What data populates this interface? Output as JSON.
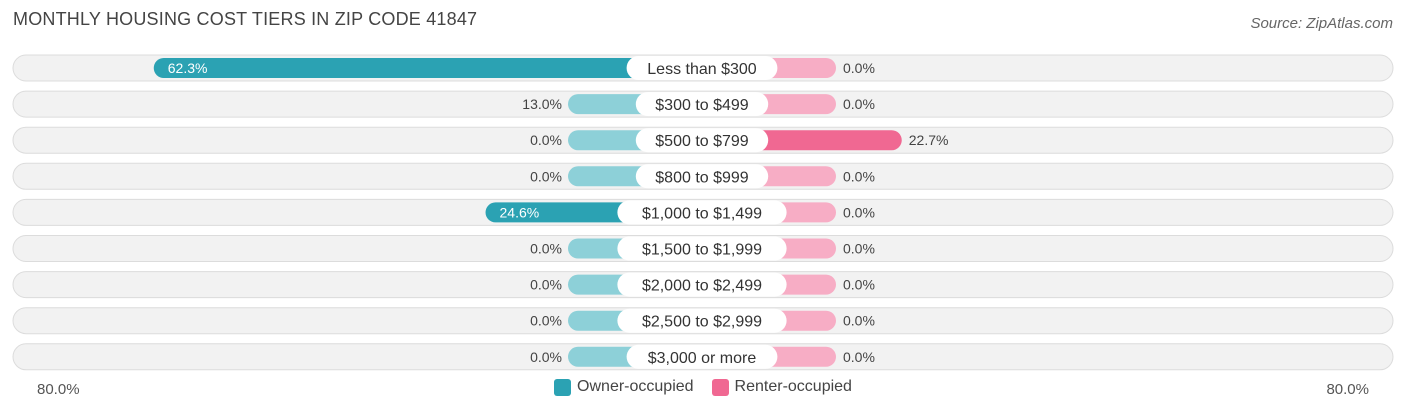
{
  "header": {
    "title": "MONTHLY HOUSING COST TIERS IN ZIP CODE 41847",
    "source": "Source: ZipAtlas.com"
  },
  "chart_data": {
    "type": "bar",
    "orientation": "horizontal-diverging",
    "categories": [
      "Less than $300",
      "$300 to $499",
      "$500 to $799",
      "$800 to $999",
      "$1,000 to $1,499",
      "$1,500 to $1,999",
      "$2,000 to $2,499",
      "$2,500 to $2,999",
      "$3,000 or more"
    ],
    "series": [
      {
        "name": "Owner-occupied",
        "color": "#5ab8c4",
        "values": [
          62.3,
          13.0,
          0.0,
          0.0,
          24.6,
          0.0,
          0.0,
          0.0,
          0.0
        ],
        "labels": [
          "62.3%",
          "13.0%",
          "0.0%",
          "0.0%",
          "24.6%",
          "0.0%",
          "0.0%",
          "0.0%",
          "0.0%"
        ]
      },
      {
        "name": "Renter-occupied",
        "color": "#f07aa0",
        "values": [
          0.0,
          0.0,
          22.7,
          0.0,
          0.0,
          0.0,
          0.0,
          0.0,
          0.0
        ],
        "labels": [
          "0.0%",
          "0.0%",
          "22.7%",
          "0.0%",
          "0.0%",
          "0.0%",
          "0.0%",
          "0.0%",
          "0.0%"
        ]
      }
    ],
    "axis": {
      "left_label": "80.0%",
      "right_label": "80.0%",
      "max": 80.0
    },
    "legend_placement": "bottom-center",
    "colors": {
      "owner_dark": "#2ba2b3",
      "owner_light": "#8dd0d8",
      "renter_dark": "#f06892",
      "renter_light": "#f7adc5",
      "row_bg": "#f2f2f2",
      "row_border": "#dcdcdc"
    }
  }
}
